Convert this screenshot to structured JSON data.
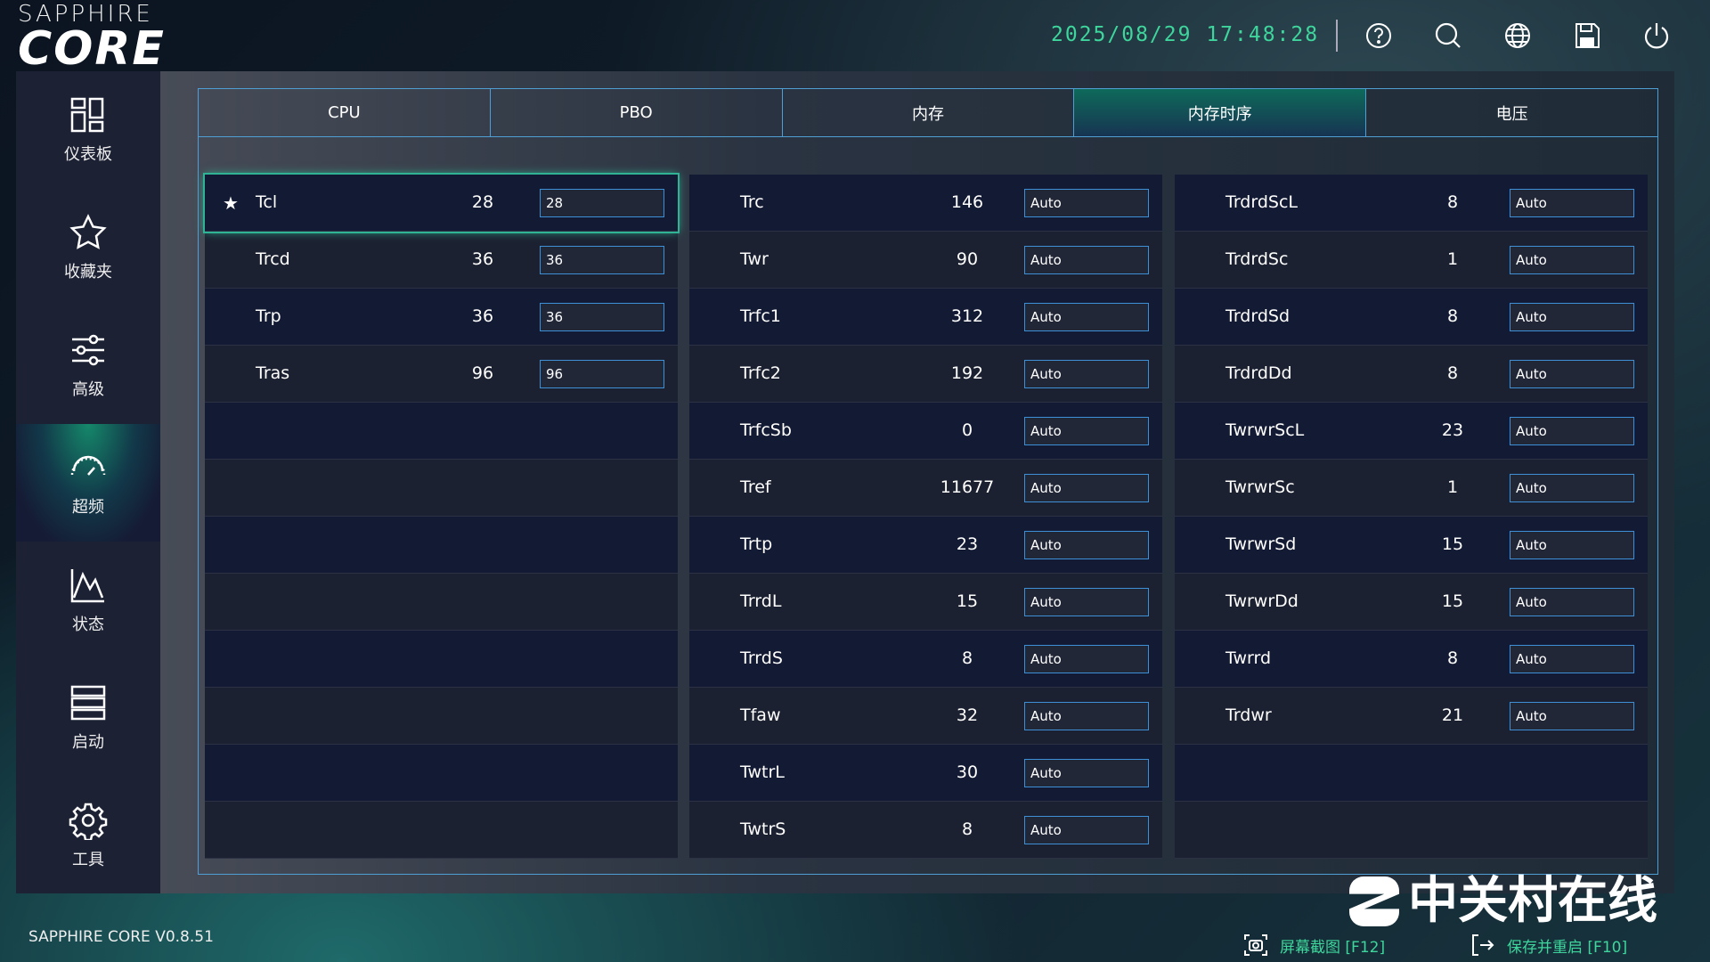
{
  "header": {
    "logo_top": "SAPPHIRE",
    "logo_main": "CORE",
    "datetime": "2025/08/29 17:48:28",
    "icons": [
      "help-icon",
      "search-icon",
      "globe-icon",
      "save-icon",
      "power-icon"
    ]
  },
  "sidebar": {
    "items": [
      {
        "label": "仪表板",
        "icon": "dashboard-icon"
      },
      {
        "label": "收藏夹",
        "icon": "star-icon"
      },
      {
        "label": "高级",
        "icon": "sliders-icon"
      },
      {
        "label": "超频",
        "icon": "speedometer-icon",
        "active": true
      },
      {
        "label": "状态",
        "icon": "chart-icon"
      },
      {
        "label": "启动",
        "icon": "boot-icon"
      },
      {
        "label": "工具",
        "icon": "gear-icon"
      }
    ]
  },
  "tabs": [
    {
      "label": "CPU"
    },
    {
      "label": "PBO"
    },
    {
      "label": "内存"
    },
    {
      "label": "内存时序",
      "active": true
    },
    {
      "label": "电压"
    }
  ],
  "columns": [
    [
      {
        "name": "Tcl",
        "value": "28",
        "input": "28",
        "favorite": true,
        "selected": true
      },
      {
        "name": "Trcd",
        "value": "36",
        "input": "36"
      },
      {
        "name": "Trp",
        "value": "36",
        "input": "36"
      },
      {
        "name": "Tras",
        "value": "96",
        "input": "96"
      }
    ],
    [
      {
        "name": "Trc",
        "value": "146",
        "input": "Auto"
      },
      {
        "name": "Twr",
        "value": "90",
        "input": "Auto"
      },
      {
        "name": "Trfc1",
        "value": "312",
        "input": "Auto"
      },
      {
        "name": "Trfc2",
        "value": "192",
        "input": "Auto"
      },
      {
        "name": "TrfcSb",
        "value": "0",
        "input": "Auto"
      },
      {
        "name": "Tref",
        "value": "11677",
        "input": "Auto"
      },
      {
        "name": "Trtp",
        "value": "23",
        "input": "Auto"
      },
      {
        "name": "TrrdL",
        "value": "15",
        "input": "Auto"
      },
      {
        "name": "TrrdS",
        "value": "8",
        "input": "Auto"
      },
      {
        "name": "Tfaw",
        "value": "32",
        "input": "Auto"
      },
      {
        "name": "TwtrL",
        "value": "30",
        "input": "Auto"
      },
      {
        "name": "TwtrS",
        "value": "8",
        "input": "Auto"
      }
    ],
    [
      {
        "name": "TrdrdScL",
        "value": "8",
        "input": "Auto"
      },
      {
        "name": "TrdrdSc",
        "value": "1",
        "input": "Auto"
      },
      {
        "name": "TrdrdSd",
        "value": "8",
        "input": "Auto"
      },
      {
        "name": "TrdrdDd",
        "value": "8",
        "input": "Auto"
      },
      {
        "name": "TwrwrScL",
        "value": "23",
        "input": "Auto"
      },
      {
        "name": "TwrwrSc",
        "value": "1",
        "input": "Auto"
      },
      {
        "name": "TwrwrSd",
        "value": "15",
        "input": "Auto"
      },
      {
        "name": "TwrwrDd",
        "value": "15",
        "input": "Auto"
      },
      {
        "name": "Twrrd",
        "value": "8",
        "input": "Auto"
      },
      {
        "name": "Trdwr",
        "value": "21",
        "input": "Auto"
      }
    ]
  ],
  "footer": {
    "version": "SAPPHIRE CORE V0.8.51",
    "screenshot": "屏幕截图 [F12]",
    "save_restart": "保存并重启 [F10]"
  },
  "watermark": "中关村在线",
  "colors": {
    "accent": "#3ed69c",
    "border": "#4f9fd4",
    "selected": "#2fb394"
  }
}
